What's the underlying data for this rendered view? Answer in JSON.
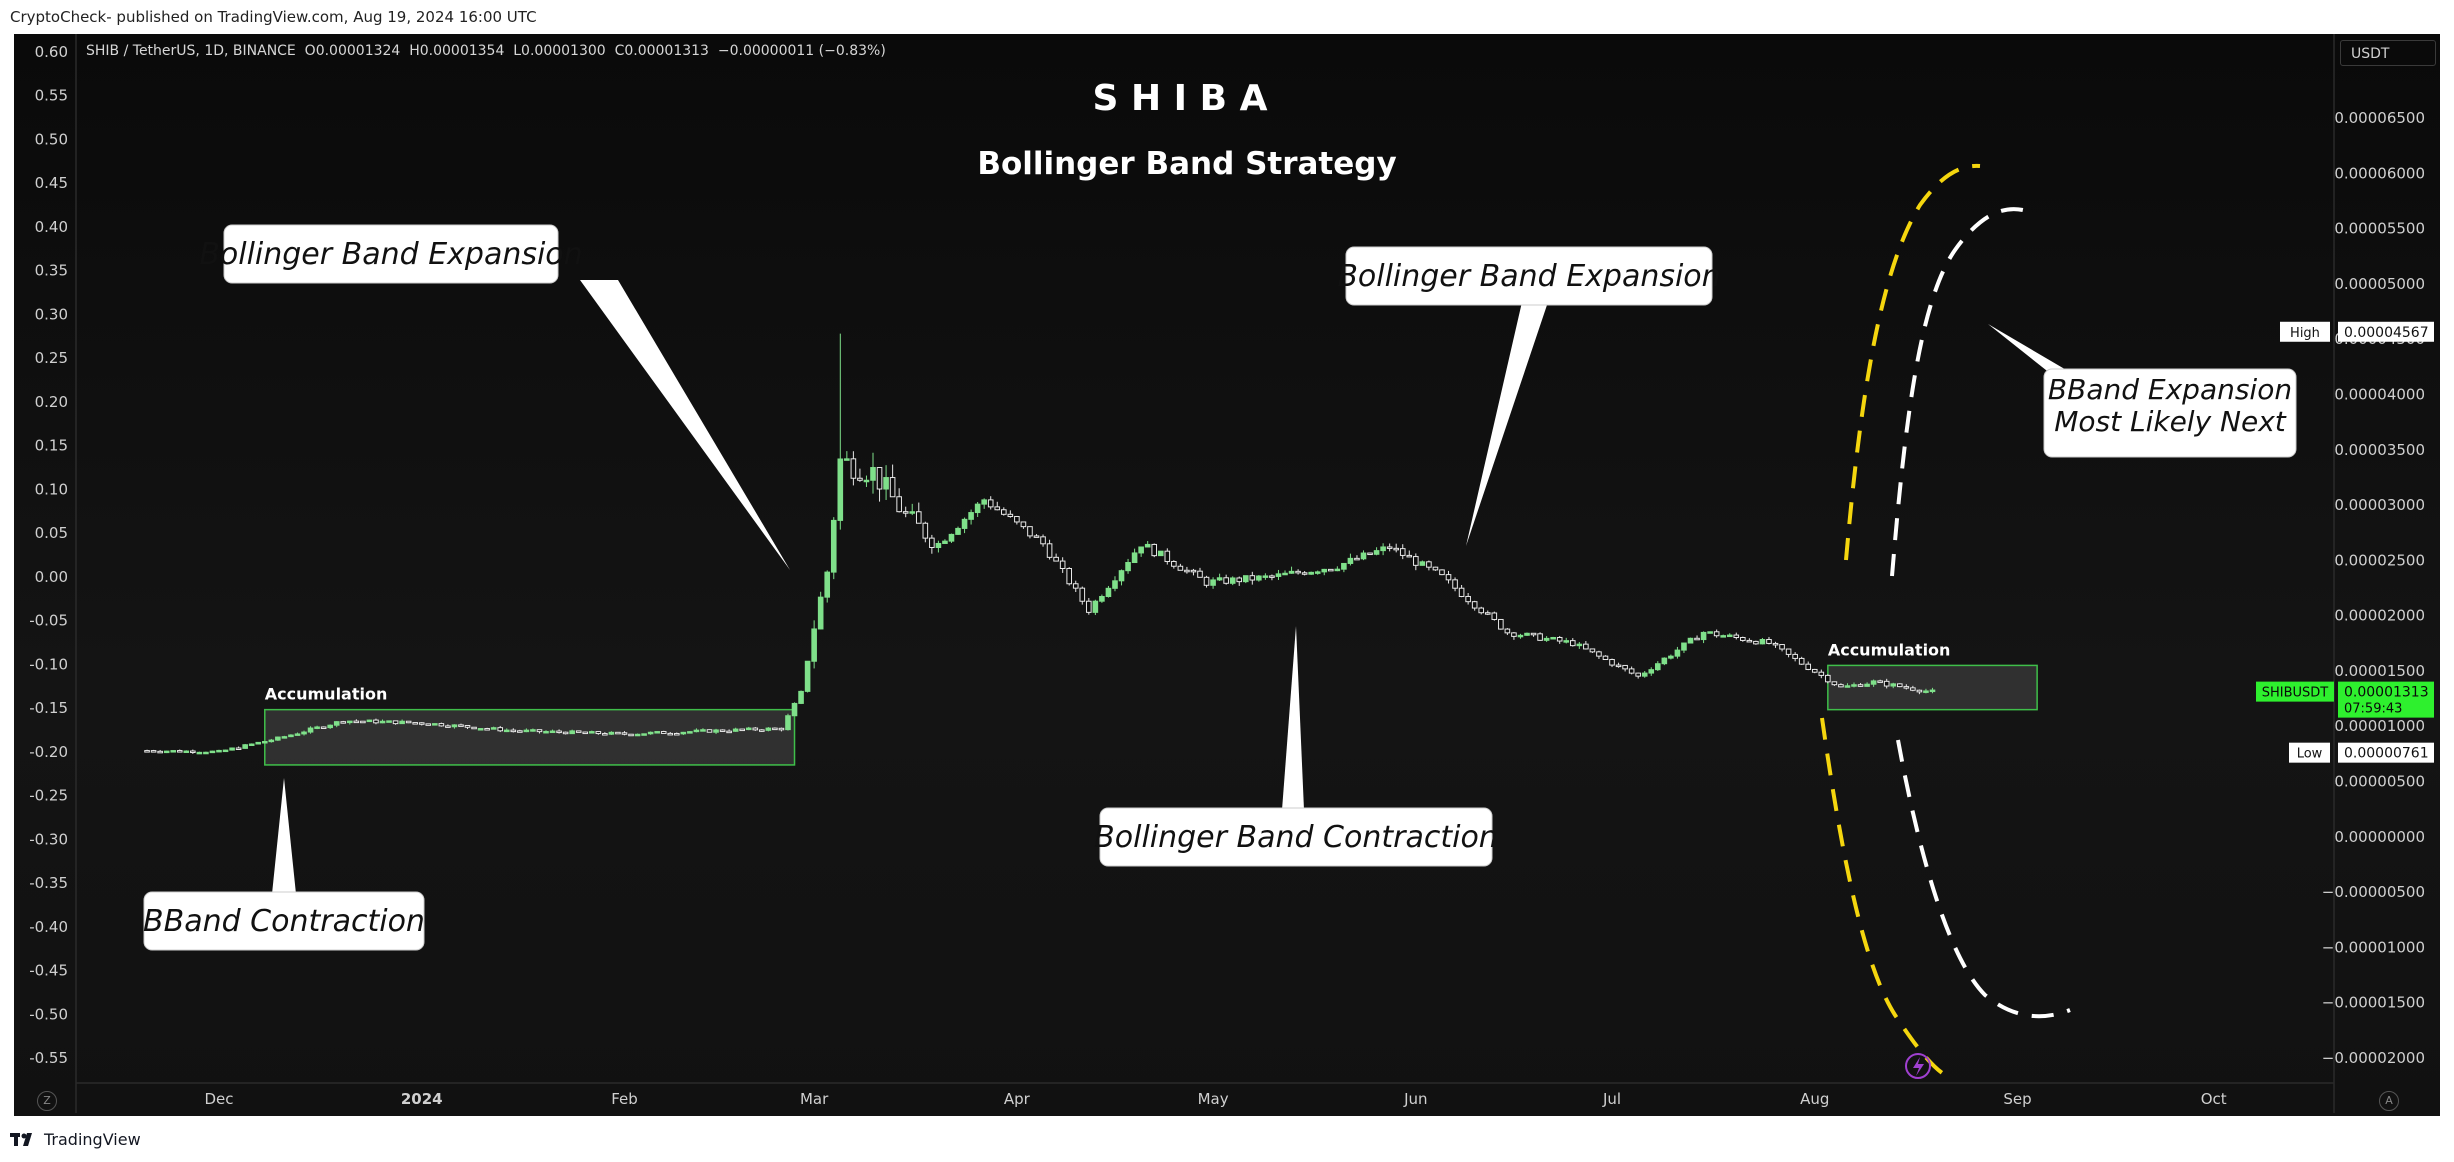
{
  "header": {
    "publisher": "CryptoCheck- published on TradingView.com, Aug 19, 2024 16:00 UTC",
    "legend": "SHIB / TetherUS, 1D, BINANCE  O0.00001324  H0.00001354  L0.00001300  C0.00001313  −0.00000011 (−0.83%)",
    "currency": "USDT"
  },
  "footer": {
    "brand": "TradingView",
    "left_button": "Z",
    "right_button": "A"
  },
  "chart_data": {
    "type": "candlestick",
    "title": "S H I B A",
    "subtitle": "Bollinger Band Strategy",
    "symbol": "SHIBUSDT",
    "left_axis": {
      "ticks": [
        "0.60",
        "0.55",
        "0.50",
        "0.45",
        "0.40",
        "0.35",
        "0.30",
        "0.25",
        "0.20",
        "0.15",
        "0.10",
        "0.05",
        "0.00",
        "-0.05",
        "-0.10",
        "-0.15",
        "-0.20",
        "-0.25",
        "-0.30",
        "-0.35",
        "-0.40",
        "-0.45",
        "-0.50",
        "-0.55"
      ],
      "range": [
        -0.55,
        0.6
      ]
    },
    "right_axis": {
      "ticks": [
        "0.00006500",
        "0.00006000",
        "0.00005500",
        "0.00005000",
        "0.00004500",
        "0.00004000",
        "0.00003500",
        "0.00003000",
        "0.00002500",
        "0.00002000",
        "0.00001500",
        "0.00001000",
        "0.00000500",
        "0.00000000",
        "−0.00000500",
        "−0.00001000",
        "−0.00001500",
        "−0.00002000"
      ],
      "range": [
        -2e-05,
        6.5e-05
      ]
    },
    "x_ticks": [
      "Dec",
      "2024",
      "Feb",
      "Mar",
      "Apr",
      "May",
      "Jun",
      "Jul",
      "Aug",
      "Sep",
      "Oct"
    ],
    "price_path": [
      [
        "2023-11-20",
        7.8e-06
      ],
      [
        "2023-12-01",
        7.7e-06
      ],
      [
        "2023-12-10",
        8.9e-06
      ],
      [
        "2023-12-20",
        1.05e-05
      ],
      [
        "2024-01-01",
        1.03e-05
      ],
      [
        "2024-01-15",
        9.6e-06
      ],
      [
        "2024-02-01",
        9.3e-06
      ],
      [
        "2024-02-15",
        9.6e-06
      ],
      [
        "2024-02-25",
        9.8e-06
      ],
      [
        "2024-02-28",
        1.3e-05
      ],
      [
        "2024-03-01",
        1.9e-05
      ],
      [
        "2024-03-03",
        2.4e-05
      ],
      [
        "2024-03-05",
        3.4e-05
      ],
      [
        "2024-03-10",
        3.3e-05
      ],
      [
        "2024-03-15",
        2.9e-05
      ],
      [
        "2024-03-20",
        2.65e-05
      ],
      [
        "2024-03-27",
        3.05e-05
      ],
      [
        "2024-04-05",
        2.65e-05
      ],
      [
        "2024-04-12",
        2.05e-05
      ],
      [
        "2024-04-20",
        2.65e-05
      ],
      [
        "2024-04-30",
        2.3e-05
      ],
      [
        "2024-05-10",
        2.35e-05
      ],
      [
        "2024-05-20",
        2.45e-05
      ],
      [
        "2024-05-28",
        2.62e-05
      ],
      [
        "2024-06-05",
        2.35e-05
      ],
      [
        "2024-06-15",
        1.85e-05
      ],
      [
        "2024-06-25",
        1.75e-05
      ],
      [
        "2024-07-05",
        1.45e-05
      ],
      [
        "2024-07-15",
        1.85e-05
      ],
      [
        "2024-07-25",
        1.75e-05
      ],
      [
        "2024-08-05",
        1.35e-05
      ],
      [
        "2024-08-10",
        1.4e-05
      ],
      [
        "2024-08-19",
        1.31e-05
      ]
    ],
    "spike_high": 4.55e-05,
    "price_tags": [
      {
        "label": "High",
        "value": "0.00004567"
      },
      {
        "label": "SHIBUSDT",
        "value": "0.00001313",
        "sub": "07:59:43"
      },
      {
        "label": "Low",
        "value": "0.00000761"
      }
    ],
    "zones": [
      {
        "label": "Accumulation",
        "start": "2023-12-08",
        "end": "2024-02-27",
        "top": 1.15e-05,
        "bottom": 6.5e-06
      },
      {
        "label": "Accumulation",
        "start": "2024-08-03",
        "end": "2024-09-04",
        "top": 1.55e-05,
        "bottom": 1.15e-05
      }
    ],
    "callouts": [
      "Bollinger Band Expansion",
      "Bollinger Band Expansion",
      "Bollinger Band Contraction",
      "BBand Contraction",
      "BBand Expansion\nMost Likely Next"
    ],
    "grid": false,
    "colors": {
      "up": "#7fe08a",
      "down": "#e8e8e8",
      "zone_border": "#3fbf4a",
      "zone_fill": "#3a3a3a",
      "band_yellow": "#f5d60e",
      "band_white": "#ffffff",
      "price_tag": "#2ef02e",
      "text": "#ffffff"
    }
  }
}
